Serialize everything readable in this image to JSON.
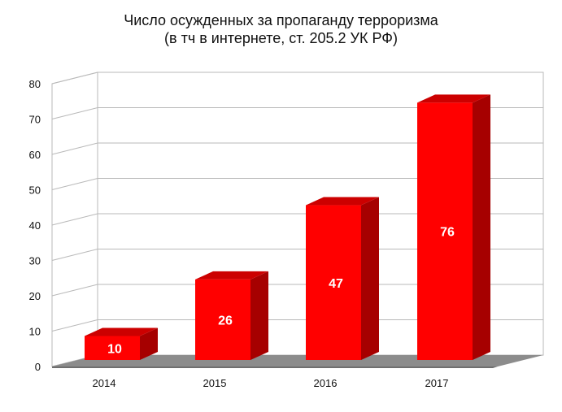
{
  "chart_data": {
    "type": "bar",
    "title_line1": "Число осужденных за пропаганду терроризма",
    "title_line2": "(в тч в интернете, ст. 205.2 УК РФ)",
    "categories": [
      "2014",
      "2015",
      "2016",
      "2017"
    ],
    "values": [
      10,
      26,
      47,
      76
    ],
    "data_labels": [
      "10",
      "26",
      "47",
      "76"
    ],
    "yticks": [
      "0",
      "10",
      "20",
      "30",
      "40",
      "50",
      "60",
      "70",
      "80"
    ],
    "ylim": [
      0,
      80
    ],
    "grid": true,
    "style": "3d",
    "colors": {
      "bar_front": "#ff0000",
      "bar_side": "#a60000",
      "bar_top": "#cc0000",
      "floor": "#8c8c8c",
      "gridline": "#b9b9b9"
    }
  }
}
